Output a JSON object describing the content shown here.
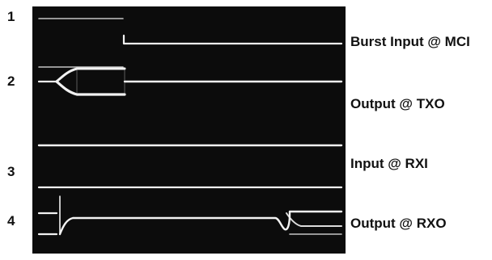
{
  "traces": [
    {
      "number": "1",
      "label": "Burst Input @ MCI"
    },
    {
      "number": "2",
      "label": "Output @ TXO"
    },
    {
      "number": "3",
      "label": "Input @ RXI"
    },
    {
      "number": "4",
      "label": "Output @ RXO"
    }
  ],
  "colors": {
    "screen_background": "#0c0c0c",
    "trace": "#f2f2f2",
    "label_text": "#111111",
    "page_background": "#ffffff"
  }
}
